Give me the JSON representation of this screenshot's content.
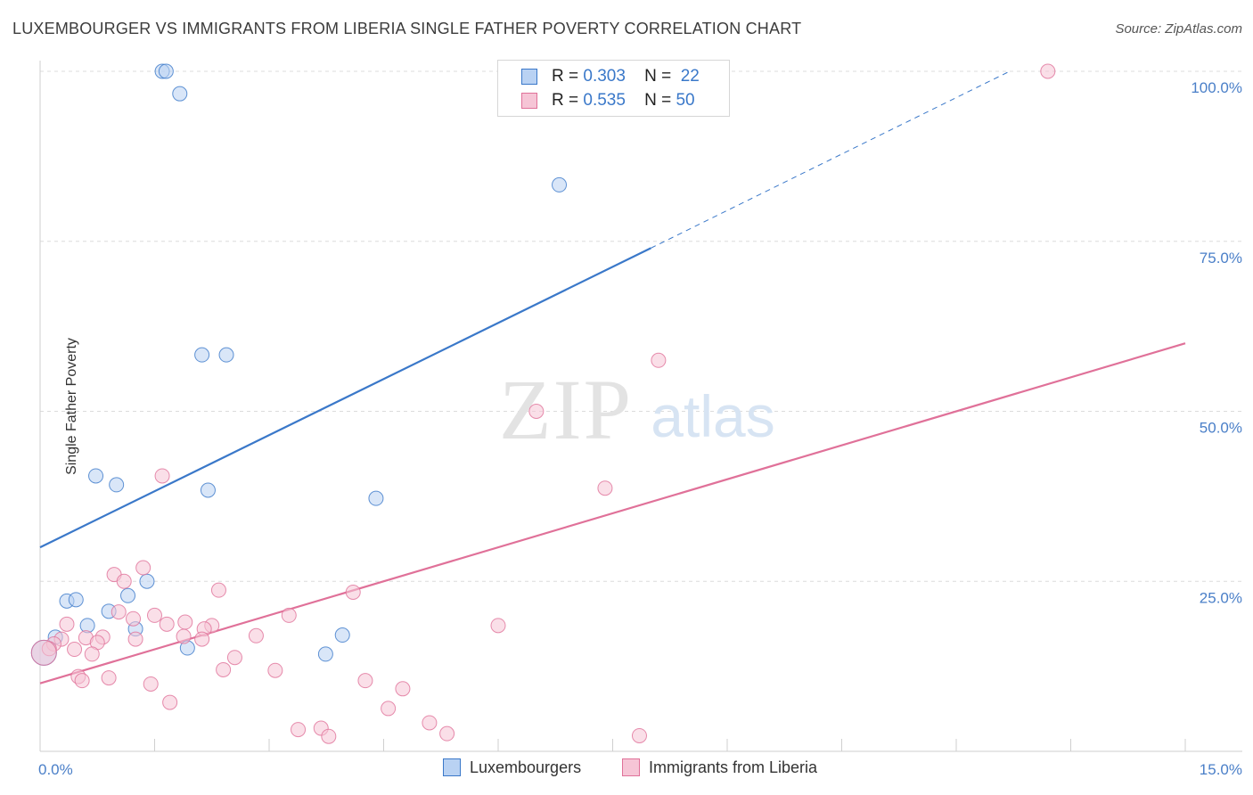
{
  "title": "LUXEMBOURGER VS IMMIGRANTS FROM LIBERIA SINGLE FATHER POVERTY CORRELATION CHART",
  "source": "Source: ZipAtlas.com",
  "watermark": {
    "zip": "ZIP",
    "atlas": "atlas"
  },
  "colors": {
    "blue": "#3a78c9",
    "blue_fill": "#b9d2f3",
    "pink": "#e07199",
    "pink_fill": "#f6c5d6",
    "grid": "#dcdcdc",
    "axis_text": "#4a7fc8"
  },
  "chart_data": {
    "type": "scatter",
    "title": "LUXEMBOURGER VS IMMIGRANTS FROM LIBERIA SINGLE FATHER POVERTY CORRELATION CHART",
    "xlabel": "",
    "ylabel": "Single Father Poverty",
    "xlim": [
      0,
      15
    ],
    "ylim": [
      0,
      100
    ],
    "x_tick_labels": [
      "0.0%",
      "15.0%"
    ],
    "y_ticks": [
      25,
      50,
      75,
      100
    ],
    "y_tick_labels": [
      "25.0%",
      "50.0%",
      "75.0%",
      "100.0%"
    ],
    "legend_stats": [
      {
        "r_label": "R =",
        "r": "0.303",
        "n_label": "N =",
        "n": "22"
      },
      {
        "r_label": "R =",
        "r": "0.535",
        "n_label": "N =",
        "n": "50"
      }
    ],
    "series": [
      {
        "name": "Luxembourgers",
        "color": "#3a78c9",
        "points": [
          [
            1.6,
            100
          ],
          [
            1.65,
            100
          ],
          [
            1.83,
            96.7
          ],
          [
            6.8,
            83.3
          ],
          [
            2.12,
            58.3
          ],
          [
            2.44,
            58.3
          ],
          [
            0.73,
            40.5
          ],
          [
            1.0,
            39.2
          ],
          [
            2.2,
            38.4
          ],
          [
            4.4,
            37.2
          ],
          [
            1.4,
            25.0
          ],
          [
            1.15,
            22.9
          ],
          [
            0.35,
            22.1
          ],
          [
            0.47,
            22.3
          ],
          [
            0.9,
            20.6
          ],
          [
            0.62,
            18.5
          ],
          [
            1.25,
            18.0
          ],
          [
            3.96,
            17.1
          ],
          [
            0.2,
            16.8
          ],
          [
            1.93,
            15.2
          ],
          [
            3.74,
            14.3
          ],
          [
            0.05,
            14.5
          ]
        ],
        "trend": {
          "x0": 0,
          "y0": 30,
          "x1": 8.0,
          "y1": 74,
          "dash_to_x": 12.7,
          "dash_to_y": 100
        }
      },
      {
        "name": "Immigrants from Liberia",
        "color": "#e07199",
        "points": [
          [
            13.2,
            100
          ],
          [
            8.1,
            57.5
          ],
          [
            6.5,
            50.0
          ],
          [
            1.6,
            40.5
          ],
          [
            7.4,
            38.7
          ],
          [
            1.35,
            27.0
          ],
          [
            0.97,
            26.0
          ],
          [
            1.1,
            25.0
          ],
          [
            2.34,
            23.7
          ],
          [
            4.1,
            23.4
          ],
          [
            1.03,
            20.5
          ],
          [
            1.5,
            20.0
          ],
          [
            1.22,
            19.5
          ],
          [
            3.26,
            20.0
          ],
          [
            1.9,
            19.0
          ],
          [
            0.35,
            18.7
          ],
          [
            1.66,
            18.7
          ],
          [
            2.25,
            18.5
          ],
          [
            6.0,
            18.5
          ],
          [
            2.15,
            18.0
          ],
          [
            0.6,
            16.7
          ],
          [
            0.82,
            16.8
          ],
          [
            1.88,
            16.9
          ],
          [
            2.83,
            17.0
          ],
          [
            0.28,
            16.5
          ],
          [
            1.25,
            16.5
          ],
          [
            2.12,
            16.5
          ],
          [
            0.75,
            16.0
          ],
          [
            0.18,
            15.8
          ],
          [
            0.12,
            15.1
          ],
          [
            0.45,
            15.0
          ],
          [
            0.68,
            14.3
          ],
          [
            2.55,
            13.8
          ],
          [
            2.4,
            12.0
          ],
          [
            3.08,
            11.9
          ],
          [
            0.5,
            11.0
          ],
          [
            0.9,
            10.8
          ],
          [
            0.55,
            10.4
          ],
          [
            4.26,
            10.4
          ],
          [
            1.45,
            9.9
          ],
          [
            4.75,
            9.2
          ],
          [
            1.7,
            7.2
          ],
          [
            4.56,
            6.3
          ],
          [
            5.1,
            4.2
          ],
          [
            3.38,
            3.2
          ],
          [
            3.68,
            3.4
          ],
          [
            5.33,
            2.6
          ],
          [
            3.78,
            2.2
          ],
          [
            7.85,
            2.3
          ],
          [
            0.05,
            14.5
          ]
        ],
        "trend": {
          "x0": 0,
          "y0": 10,
          "x1": 15,
          "y1": 60
        }
      }
    ],
    "legend": {
      "placement": "top-center",
      "bottom_labels": [
        "Luxembourgers",
        "Immigrants from Liberia"
      ]
    }
  }
}
